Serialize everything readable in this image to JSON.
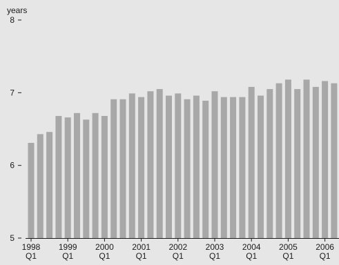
{
  "chart_data": {
    "type": "bar",
    "unit_label": "years",
    "y_ticks": [
      5,
      6,
      7,
      8
    ],
    "ylim": [
      5,
      8
    ],
    "x_ticks": [
      {
        "year": "1998",
        "quarter": "Q1",
        "index": 0
      },
      {
        "year": "1999",
        "quarter": "Q1",
        "index": 4
      },
      {
        "year": "2000",
        "quarter": "Q1",
        "index": 8
      },
      {
        "year": "2001",
        "quarter": "Q1",
        "index": 12
      },
      {
        "year": "2002",
        "quarter": "Q1",
        "index": 16
      },
      {
        "year": "2003",
        "quarter": "Q1",
        "index": 20
      },
      {
        "year": "2004",
        "quarter": "Q1",
        "index": 24
      },
      {
        "year": "2005",
        "quarter": "Q1",
        "index": 28
      },
      {
        "year": "2006",
        "quarter": "Q1",
        "index": 32
      }
    ],
    "categories": [
      "1998Q1",
      "1998Q2",
      "1998Q3",
      "1998Q4",
      "1999Q1",
      "1999Q2",
      "1999Q3",
      "1999Q4",
      "2000Q1",
      "2000Q2",
      "2000Q3",
      "2000Q4",
      "2001Q1",
      "2001Q2",
      "2001Q3",
      "2001Q4",
      "2002Q1",
      "2002Q2",
      "2002Q3",
      "2002Q4",
      "2003Q1",
      "2003Q2",
      "2003Q3",
      "2003Q4",
      "2004Q1",
      "2004Q2",
      "2004Q3",
      "2004Q4",
      "2005Q1",
      "2005Q2",
      "2005Q3",
      "2005Q4",
      "2006Q1",
      "2006Q2",
      "2006Q3"
    ],
    "values": [
      6.31,
      6.43,
      6.46,
      6.68,
      6.66,
      6.72,
      6.63,
      6.72,
      6.68,
      6.91,
      6.91,
      6.99,
      6.94,
      7.02,
      7.05,
      6.96,
      6.99,
      6.91,
      6.96,
      6.89,
      7.02,
      6.94,
      6.94,
      6.94,
      7.08,
      6.96,
      7.05,
      7.13,
      7.18,
      7.05,
      7.18,
      7.08,
      7.16,
      7.13,
      7.13
    ],
    "bar_color": "#a8a8a8",
    "background_color": "#e6e6e6",
    "axis_color": "#1a1a1a",
    "grid": false
  }
}
